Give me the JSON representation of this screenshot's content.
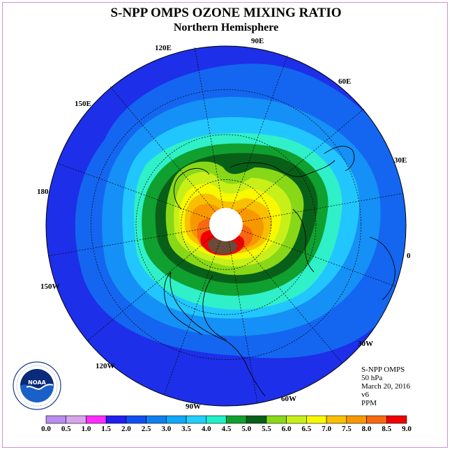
{
  "header": {
    "title": "S-NPP OMPS OZONE MIXING RATIO",
    "subtitle": "Northern Hemisphere"
  },
  "longitude_labels": [
    "120E",
    "90E",
    "60E",
    "150E",
    "30E",
    "180",
    "0",
    "150W",
    "30W",
    "120W",
    "60W",
    "90W"
  ],
  "info": {
    "instrument": "S-NPP OMPS",
    "level": "50 hPa",
    "date": "March 20, 2016",
    "version": "v6",
    "unit": "PPM"
  },
  "logo": {
    "name": "noaa-logo",
    "text": "NOAA",
    "ring_text": "NATIONAL OCEANIC AND ATMOSPHERIC ADMINISTRATION · U.S. DEPARTMENT OF COMMERCE"
  },
  "colorbar": {
    "labels": [
      "0.0",
      "0.5",
      "1.0",
      "1.5",
      "2.0",
      "2.5",
      "3.0",
      "3.5",
      "4.0",
      "4.5",
      "5.0",
      "5.5",
      "6.0",
      "6.5",
      "7.0",
      "7.5",
      "8.0",
      "8.5",
      "9.0"
    ],
    "colors": [
      "#b98cf0",
      "#d7a6ea",
      "#ff2cff",
      "#2020f0",
      "#1050f0",
      "#1080f0",
      "#10a8f8",
      "#20d0ff",
      "#20f0c8",
      "#10a030",
      "#086018",
      "#88d818",
      "#c8f018",
      "#f8f800",
      "#f8c000",
      "#f89800",
      "#f86810",
      "#f00000",
      "#6a4a38"
    ]
  },
  "map_colors": {
    "outer_ring": "#1d2fe8",
    "band_2_5": "#1466f0",
    "band_3_0": "#1590f6",
    "band_3_5": "#22c6ff",
    "band_4_0": "#2ff0c8",
    "band_4_5": "#10a030",
    "band_5_0": "#086018",
    "band_5_5": "#88d818",
    "band_6_0": "#c8f018",
    "band_6_5": "#f8f800",
    "band_7_0": "#f8c000",
    "band_7_5": "#f89800",
    "band_8_0": "#f86810",
    "band_8_5": "#f00000",
    "band_9_0": "#6a4a38",
    "pole_hole": "#ffffff"
  }
}
